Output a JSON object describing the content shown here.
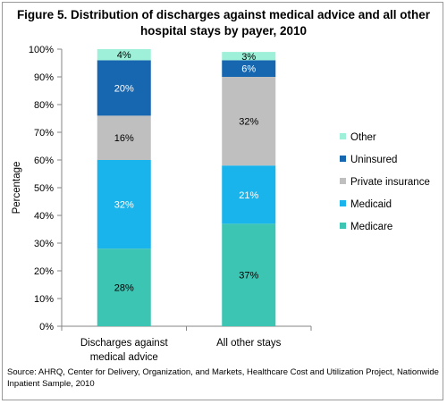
{
  "figure": {
    "title": "Figure 5. Distribution of discharges against medical advice and all other hospital stays by payer, 2010",
    "source": "Source: AHRQ, Center for Delivery, Organization, and Markets, Healthcare Cost and Utilization Project, Nationwide Inpatient Sample, 2010"
  },
  "chart_data": {
    "type": "bar",
    "stacked": true,
    "ylabel": "Percentage",
    "ylim": [
      0,
      100
    ],
    "yticks": [
      "0%",
      "10%",
      "20%",
      "30%",
      "40%",
      "50%",
      "60%",
      "70%",
      "80%",
      "90%",
      "100%"
    ],
    "categories": [
      [
        "Discharges against",
        "medical advice"
      ],
      [
        "All other stays"
      ]
    ],
    "series": [
      {
        "name": "Medicare",
        "color": "#3cc5b3",
        "values": [
          28,
          37
        ],
        "labels": [
          "28%",
          "37%"
        ]
      },
      {
        "name": "Medicaid",
        "color": "#19b4ec",
        "values": [
          32,
          21
        ],
        "labels": [
          "32%",
          "21%"
        ]
      },
      {
        "name": "Private insurance",
        "color": "#bfbfbf",
        "values": [
          16,
          32
        ],
        "labels": [
          "16%",
          "32%"
        ]
      },
      {
        "name": "Uninsured",
        "color": "#1766b0",
        "values": [
          20,
          6
        ],
        "labels": [
          "20%",
          "6%"
        ]
      },
      {
        "name": "Other",
        "color": "#9ff0d8",
        "values": [
          4,
          3
        ],
        "labels": [
          "4%",
          "3%"
        ]
      }
    ],
    "legend_order": [
      "Other",
      "Uninsured",
      "Private insurance",
      "Medicaid",
      "Medicare"
    ],
    "legend_position": "right",
    "grid": false
  }
}
